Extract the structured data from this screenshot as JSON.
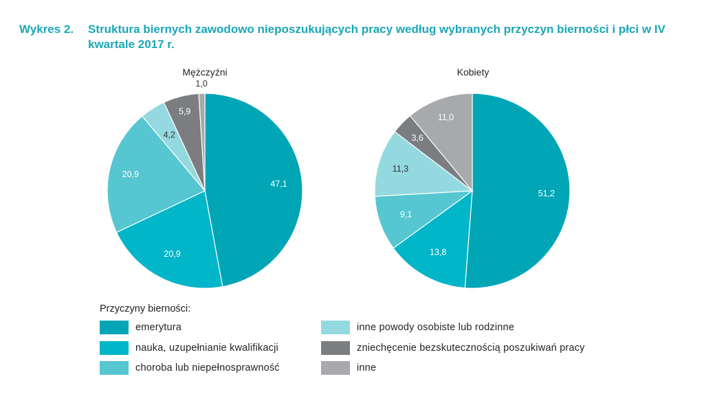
{
  "title": {
    "label": "Wykres 2.",
    "text": "Struktura biernych zawodowo nieposzukujących pracy według wybranych przyczyn bierności i płci w IV kwartale 2017 r."
  },
  "colors": {
    "title": "#1aa6b7",
    "label_light": "#ffffff",
    "label_dark": "#333333"
  },
  "chart_data": [
    {
      "type": "pie",
      "title": "Mężczyźni",
      "categories": [
        "emerytura",
        "nauka, uzupełnianie kwalifikacji",
        "choroba lub niepełnosprawność",
        "inne powody osobiste lub rodzinne",
        "zniechęcenie bezskutecznością poszukiwań pracy",
        "inne"
      ],
      "values": [
        47.1,
        20.9,
        20.9,
        4.2,
        5.9,
        1.0
      ],
      "labels": [
        "47,1",
        "20,9",
        "20,9",
        "4,2",
        "5,9",
        "1,0"
      ],
      "colors": [
        "#00a6b6",
        "#00b6c8",
        "#56c6d1",
        "#94d9e0",
        "#7b7d80",
        "#a7a9ac"
      ]
    },
    {
      "type": "pie",
      "title": "Kobiety",
      "categories": [
        "emerytura",
        "nauka, uzupełnianie kwalifikacji",
        "choroba lub niepełnosprawność",
        "inne powody osobiste lub rodzinne",
        "zniechęcenie bezskutecznością poszukiwań pracy",
        "inne"
      ],
      "values": [
        51.2,
        13.8,
        9.1,
        11.3,
        3.6,
        11.0
      ],
      "labels": [
        "51,2",
        "13,8",
        "9,1",
        "11,3",
        "3,6",
        "11,0"
      ],
      "colors": [
        "#00a6b6",
        "#00b6c8",
        "#56c6d1",
        "#94d9e0",
        "#7b7d80",
        "#a7a9ac"
      ]
    }
  ],
  "legend": {
    "heading": "Przyczyny bierności:",
    "items": [
      {
        "label": "emerytura",
        "color": "#00a6b6"
      },
      {
        "label": "nauka, uzupełnianie kwalifikacji",
        "color": "#00b6c8"
      },
      {
        "label": "choroba lub niepełnosprawność",
        "color": "#56c6d1"
      },
      {
        "label": "inne powody osobiste lub rodzinne",
        "color": "#94d9e0"
      },
      {
        "label": "zniechęcenie bezskutecznością poszukiwań pracy",
        "color": "#7b7d80"
      },
      {
        "label": "inne",
        "color": "#a7a9ac"
      }
    ]
  }
}
